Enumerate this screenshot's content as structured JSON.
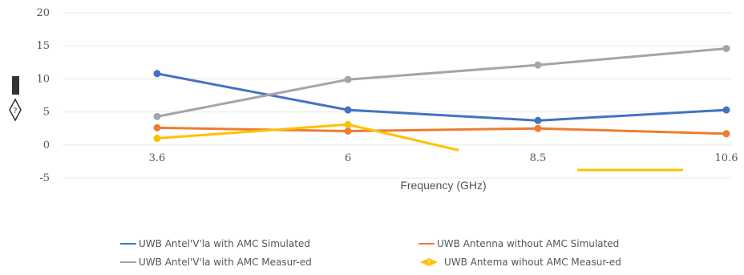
{
  "chart_data": {
    "type": "line",
    "categories": [
      "3.6",
      "6",
      "8.5",
      "10.6"
    ],
    "ylim": [
      -5,
      20
    ],
    "yticks": [
      "20",
      "15",
      "10",
      "5",
      "0",
      "-5"
    ],
    "xlabel": "Frequency (GHz)",
    "ylabel": "",
    "grid": true,
    "legend_position": "bottom",
    "series": [
      {
        "name": "UWB Antel'V'la with AMC Simulated",
        "values": [
          10.8,
          5.3,
          3.7,
          5.3
        ],
        "color": "#4472c4"
      },
      {
        "name": "UWB Antenna without AMC Simulated",
        "values": [
          2.6,
          2.1,
          2.5,
          1.7
        ],
        "color": "#ed7d31"
      },
      {
        "name": "UWB Antel'V'la with AMC Measur-ed",
        "values": [
          4.3,
          9.9,
          12.1,
          14.6
        ],
        "color": "#a5a5a5"
      },
      {
        "name": "UWB Antema wihout AMC Measur-ed",
        "values": [
          1.0,
          3.1,
          null,
          null
        ],
        "color": "#ffc000"
      }
    ]
  }
}
